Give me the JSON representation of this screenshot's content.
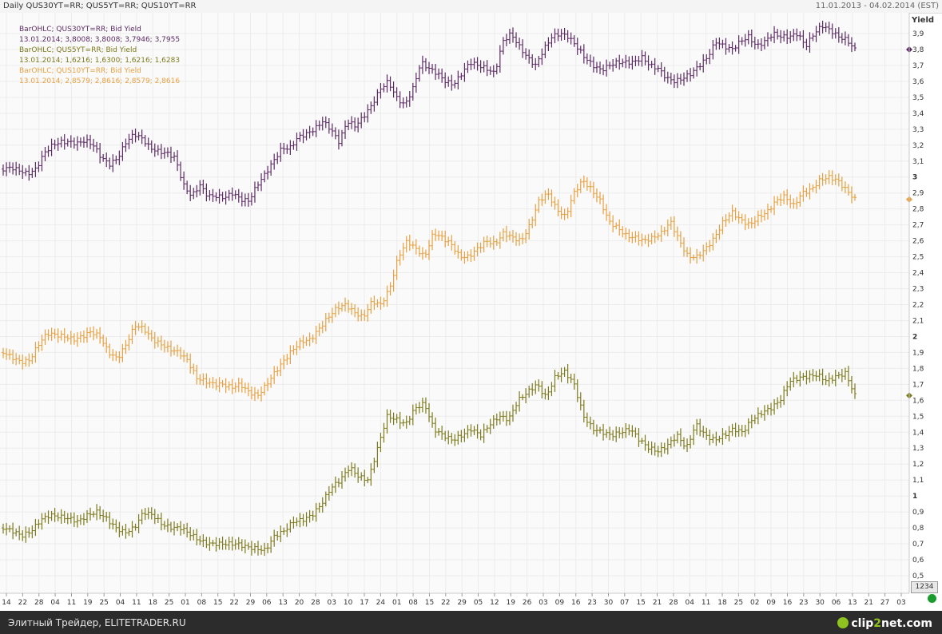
{
  "header": {
    "title": "Daily QUS30YT=RR; QUS5YT=RR; QUS10YT=RR",
    "range": "11.01.2013 - 04.02.2014 (EST)"
  },
  "legend": {
    "s30_name": "BarOHLC; QUS30YT=RR; Bid Yield",
    "s30_values": "13.01.2014; 3,8008; 3,8008; 3,7946; 3,7955",
    "s5_name": "BarOHLC; QUS5YT=RR; Bid Yield",
    "s5_values": "13.01.2014; 1,6216; 1,6300; 1,6216; 1,6283",
    "s10_name": "BarOHLC; QUS10YT=RR; Bid Yield",
    "s10_values": "13.01.2014; 2,8579; 2,8616; 2,8579; 2,8616"
  },
  "controls": {
    "zoom_label": "1234"
  },
  "footer": {
    "caption": "Элитный Трейдер, ELITETRADER.RU",
    "logo_a": "clip",
    "logo_b": "2",
    "logo_c": "net.com"
  },
  "colors": {
    "s30": "#5b2a63",
    "s10": "#e8a040",
    "s5": "#7d7a1c",
    "grid": "#ececec"
  },
  "chart_data": {
    "type": "bar",
    "subtype": "ohlc",
    "ylabel": "Yield",
    "ylim": [
      0.45,
      4.0
    ],
    "y_ticks": [
      "0,5",
      "0,6",
      "0,7",
      "0,8",
      "0,9",
      "1",
      "1,1",
      "1,2",
      "1,3",
      "1,4",
      "1,5",
      "1,6",
      "1,7",
      "1,8",
      "1,9",
      "2",
      "2,1",
      "2,2",
      "2,3",
      "2,4",
      "2,5",
      "2,6",
      "2,7",
      "2,8",
      "2,9",
      "3",
      "3,1",
      "3,2",
      "3,3",
      "3,4",
      "3,5",
      "3,6",
      "3,7",
      "3,8",
      "3,9"
    ],
    "x_ticks": [
      "14",
      "22",
      "28",
      "04",
      "11",
      "19",
      "25",
      "04",
      "11",
      "18",
      "25",
      "01",
      "08",
      "15",
      "22",
      "29",
      "06",
      "13",
      "20",
      "28",
      "03",
      "10",
      "17",
      "24",
      "01",
      "08",
      "15",
      "22",
      "29",
      "05",
      "12",
      "19",
      "26",
      "03",
      "09",
      "16",
      "23",
      "30",
      "07",
      "15",
      "21",
      "28",
      "04",
      "11",
      "18",
      "25",
      "02",
      "09",
      "16",
      "23",
      "30",
      "06",
      "13",
      "21",
      "27",
      "03"
    ],
    "grid": true,
    "series": [
      {
        "name": "QUS30YT=RR",
        "approx_close": [
          3.05,
          3.06,
          3.04,
          3.02,
          3.05,
          3.15,
          3.2,
          3.22,
          3.22,
          3.21,
          3.23,
          3.2,
          3.12,
          3.08,
          3.12,
          3.22,
          3.27,
          3.24,
          3.18,
          3.16,
          3.15,
          3.12,
          2.95,
          2.88,
          2.95,
          2.88,
          2.88,
          2.87,
          2.9,
          2.86,
          2.85,
          2.95,
          3.02,
          3.1,
          3.18,
          3.18,
          3.25,
          3.27,
          3.3,
          3.35,
          3.3,
          3.22,
          3.35,
          3.32,
          3.38,
          3.45,
          3.55,
          3.6,
          3.5,
          3.45,
          3.55,
          3.72,
          3.68,
          3.65,
          3.6,
          3.58,
          3.65,
          3.72,
          3.7,
          3.68,
          3.65,
          3.85,
          3.9,
          3.82,
          3.75,
          3.7,
          3.8,
          3.88,
          3.9,
          3.88,
          3.82,
          3.75,
          3.7,
          3.67,
          3.7,
          3.72,
          3.72,
          3.72,
          3.75,
          3.7,
          3.68,
          3.62,
          3.6,
          3.62,
          3.65,
          3.7,
          3.75,
          3.85,
          3.82,
          3.8,
          3.85,
          3.88,
          3.82,
          3.85,
          3.9,
          3.88,
          3.88,
          3.9,
          3.82,
          3.9,
          3.95,
          3.92,
          3.88,
          3.86,
          3.8
        ]
      },
      {
        "name": "QUS10YT=RR",
        "approx_close": [
          1.9,
          1.87,
          1.84,
          1.85,
          1.95,
          2.02,
          2.01,
          2.0,
          1.98,
          2.0,
          2.03,
          2.0,
          1.9,
          1.86,
          1.95,
          2.07,
          2.05,
          1.98,
          1.95,
          1.92,
          1.9,
          1.85,
          1.74,
          1.72,
          1.7,
          1.7,
          1.68,
          1.7,
          1.65,
          1.63,
          1.7,
          1.78,
          1.85,
          1.92,
          1.97,
          1.98,
          2.05,
          2.12,
          2.18,
          2.2,
          2.15,
          2.12,
          2.22,
          2.2,
          2.3,
          2.5,
          2.6,
          2.55,
          2.5,
          2.65,
          2.62,
          2.58,
          2.5,
          2.5,
          2.55,
          2.6,
          2.58,
          2.65,
          2.62,
          2.6,
          2.7,
          2.85,
          2.9,
          2.8,
          2.75,
          2.9,
          2.98,
          2.92,
          2.85,
          2.72,
          2.68,
          2.63,
          2.62,
          2.6,
          2.62,
          2.65,
          2.72,
          2.6,
          2.5,
          2.5,
          2.55,
          2.62,
          2.72,
          2.78,
          2.73,
          2.7,
          2.75,
          2.78,
          2.85,
          2.88,
          2.82,
          2.9,
          2.92,
          2.98,
          3.0,
          2.98,
          2.92,
          2.86
        ]
      },
      {
        "name": "QUS5YT=RR",
        "approx_close": [
          0.8,
          0.78,
          0.75,
          0.78,
          0.85,
          0.88,
          0.87,
          0.86,
          0.84,
          0.88,
          0.9,
          0.86,
          0.8,
          0.77,
          0.8,
          0.9,
          0.88,
          0.82,
          0.8,
          0.8,
          0.76,
          0.72,
          0.7,
          0.7,
          0.7,
          0.7,
          0.68,
          0.67,
          0.66,
          0.75,
          0.78,
          0.84,
          0.85,
          0.88,
          0.95,
          1.05,
          1.1,
          1.18,
          1.12,
          1.1,
          1.3,
          1.5,
          1.48,
          1.45,
          1.55,
          1.58,
          1.42,
          1.38,
          1.35,
          1.38,
          1.42,
          1.38,
          1.45,
          1.5,
          1.48,
          1.6,
          1.65,
          1.7,
          1.62,
          1.75,
          1.78,
          1.7,
          1.5,
          1.42,
          1.4,
          1.38,
          1.4,
          1.42,
          1.35,
          1.3,
          1.28,
          1.32,
          1.38,
          1.3,
          1.45,
          1.38,
          1.35,
          1.38,
          1.42,
          1.4,
          1.48,
          1.52,
          1.55,
          1.6,
          1.72,
          1.74,
          1.75,
          1.76,
          1.72,
          1.75,
          1.77,
          1.63
        ]
      }
    ]
  }
}
